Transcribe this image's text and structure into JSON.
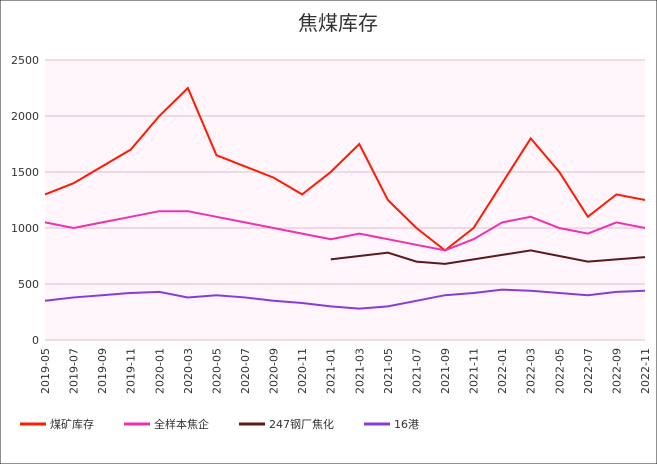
{
  "chart_data": {
    "type": "line",
    "title": "焦煤库存",
    "categories": [
      "2019-05",
      "2019-07",
      "2019-09",
      "2019-11",
      "2020-01",
      "2020-03",
      "2020-05",
      "2020-07",
      "2020-09",
      "2020-11",
      "2021-01",
      "2021-03",
      "2021-05",
      "2021-07",
      "2021-09",
      "2021-11",
      "2022-01",
      "2022-03",
      "2022-05",
      "2022-07",
      "2022-09",
      "2022-11"
    ],
    "series": [
      {
        "name": "煤矿库存",
        "color": "#ff1a00",
        "values": [
          1300,
          1400,
          1550,
          1700,
          2000,
          2250,
          1650,
          1550,
          1450,
          1300,
          1500,
          1750,
          1250,
          1000,
          800,
          1000,
          1400,
          1800,
          1500,
          1100,
          1300,
          1250
        ]
      },
      {
        "name": "全样本焦企",
        "color": "#f030b0",
        "values": [
          1050,
          1000,
          1050,
          1100,
          1150,
          1150,
          1100,
          1050,
          1000,
          950,
          900,
          950,
          900,
          850,
          800,
          900,
          1050,
          1100,
          1000,
          950,
          1050,
          1000
        ]
      },
      {
        "name": "247钢厂焦化",
        "color": "#5a1a1a",
        "values": [
          null,
          null,
          null,
          null,
          null,
          null,
          null,
          null,
          null,
          null,
          720,
          750,
          780,
          700,
          680,
          720,
          760,
          800,
          750,
          700,
          720,
          740
        ]
      },
      {
        "name": "16港",
        "color": "#8a3ad8",
        "values": [
          350,
          380,
          400,
          420,
          430,
          380,
          400,
          380,
          350,
          330,
          300,
          280,
          300,
          350,
          400,
          420,
          450,
          440,
          420,
          400,
          430,
          440
        ]
      }
    ],
    "ylim": [
      0,
      2500
    ],
    "yticks": [
      0,
      500,
      1000,
      1500,
      2000,
      2500
    ],
    "grid": true
  }
}
